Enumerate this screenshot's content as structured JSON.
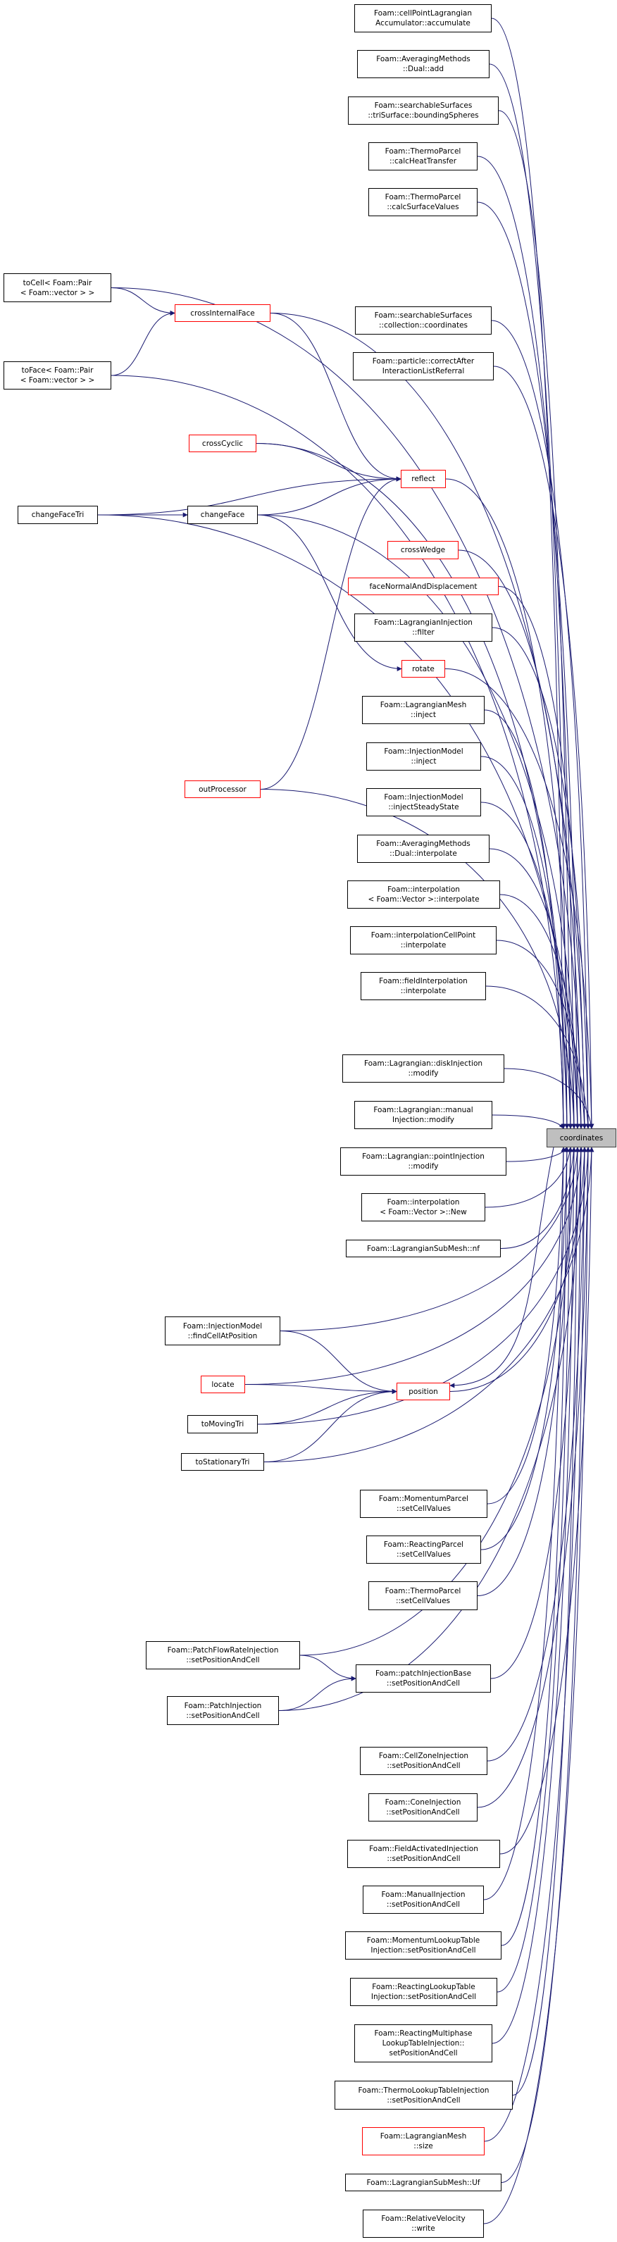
{
  "colors": {
    "edge": "#191970",
    "border": "#000000",
    "unresolved_border": "#ff0000",
    "focus_fill": "#bfbfbf"
  },
  "focus_node": "coordinates",
  "nodes": [
    {
      "id": "coordinates",
      "lines": [
        "coordinates"
      ],
      "red": false
    },
    {
      "id": "accumulate",
      "lines": [
        "Foam::cellPointLagrangian",
        "Accumulator::accumulate"
      ],
      "red": false
    },
    {
      "id": "dual_add",
      "lines": [
        "Foam::AveragingMethods",
        "::Dual::add"
      ],
      "red": false
    },
    {
      "id": "bounding_spheres",
      "lines": [
        "Foam::searchableSurfaces",
        "::triSurface::boundingSpheres"
      ],
      "red": false
    },
    {
      "id": "calc_heat_transfer",
      "lines": [
        "Foam::ThermoParcel",
        "::calcHeatTransfer"
      ],
      "red": false
    },
    {
      "id": "calc_surface_values",
      "lines": [
        "Foam::ThermoParcel",
        "::calcSurfaceValues"
      ],
      "red": false
    },
    {
      "id": "to_cell",
      "lines": [
        "toCell< Foam::Pair",
        "< Foam::vector > >"
      ],
      "red": false
    },
    {
      "id": "cross_internal_face",
      "lines": [
        "crossInternalFace"
      ],
      "red": true
    },
    {
      "id": "collection_coordinates",
      "lines": [
        "Foam::searchableSurfaces",
        "::collection::coordinates"
      ],
      "red": false
    },
    {
      "id": "correct_after",
      "lines": [
        "Foam::particle::correctAfter",
        "InteractionListReferral"
      ],
      "red": false
    },
    {
      "id": "to_face",
      "lines": [
        "toFace< Foam::Pair",
        "< Foam::vector > >"
      ],
      "red": false
    },
    {
      "id": "cross_cyclic",
      "lines": [
        "crossCyclic"
      ],
      "red": true
    },
    {
      "id": "reflect",
      "lines": [
        "reflect"
      ],
      "red": true
    },
    {
      "id": "change_face_tri",
      "lines": [
        "changeFaceTri"
      ],
      "red": false
    },
    {
      "id": "change_face",
      "lines": [
        "changeFace"
      ],
      "red": false
    },
    {
      "id": "cross_wedge",
      "lines": [
        "crossWedge"
      ],
      "red": true
    },
    {
      "id": "face_normal",
      "lines": [
        "faceNormalAndDisplacement"
      ],
      "red": true
    },
    {
      "id": "injection_filter",
      "lines": [
        "Foam::LagrangianInjection",
        "::filter"
      ],
      "red": false
    },
    {
      "id": "rotate",
      "lines": [
        "rotate"
      ],
      "red": true
    },
    {
      "id": "mesh_inject",
      "lines": [
        "Foam::LagrangianMesh",
        "::inject"
      ],
      "red": false
    },
    {
      "id": "model_inject",
      "lines": [
        "Foam::InjectionModel",
        "::inject"
      ],
      "red": false
    },
    {
      "id": "inject_steady",
      "lines": [
        "Foam::InjectionModel",
        "::injectSteadyState"
      ],
      "red": false
    },
    {
      "id": "out_processor",
      "lines": [
        "outProcessor"
      ],
      "red": true
    },
    {
      "id": "dual_interpolate",
      "lines": [
        "Foam::AveragingMethods",
        "::Dual::interpolate"
      ],
      "red": false
    },
    {
      "id": "interp_vector",
      "lines": [
        "Foam::interpolation",
        "< Foam::Vector >::interpolate"
      ],
      "red": false
    },
    {
      "id": "interp_cell_point",
      "lines": [
        "Foam::interpolationCellPoint",
        "::interpolate"
      ],
      "red": false
    },
    {
      "id": "field_interp",
      "lines": [
        "Foam::fieldInterpolation",
        "::interpolate"
      ],
      "red": false
    },
    {
      "id": "disk_modify",
      "lines": [
        "Foam::Lagrangian::diskInjection",
        "::modify"
      ],
      "red": false
    },
    {
      "id": "manual_modify",
      "lines": [
        "Foam::Lagrangian::manual",
        "Injection::modify"
      ],
      "red": false
    },
    {
      "id": "point_modify",
      "lines": [
        "Foam::Lagrangian::pointInjection",
        "::modify"
      ],
      "red": false
    },
    {
      "id": "interp_new",
      "lines": [
        "Foam::interpolation",
        "< Foam::Vector >::New"
      ],
      "red": false
    },
    {
      "id": "submesh_nf",
      "lines": [
        "Foam::LagrangianSubMesh::nf"
      ],
      "red": false
    },
    {
      "id": "find_cell",
      "lines": [
        "Foam::InjectionModel",
        "::findCellAtPosition"
      ],
      "red": false
    },
    {
      "id": "locate",
      "lines": [
        "locate"
      ],
      "red": true
    },
    {
      "id": "position",
      "lines": [
        "position"
      ],
      "red": true
    },
    {
      "id": "to_moving_tri",
      "lines": [
        "toMovingTri"
      ],
      "red": false
    },
    {
      "id": "to_stationary_tri",
      "lines": [
        "toStationaryTri"
      ],
      "red": false
    },
    {
      "id": "momentum_setcell",
      "lines": [
        "Foam::MomentumParcel",
        "::setCellValues"
      ],
      "red": false
    },
    {
      "id": "reacting_setcell",
      "lines": [
        "Foam::ReactingParcel",
        "::setCellValues"
      ],
      "red": false
    },
    {
      "id": "thermo_setcell",
      "lines": [
        "Foam::ThermoParcel",
        "::setCellValues"
      ],
      "red": false
    },
    {
      "id": "patch_flow_rate",
      "lines": [
        "Foam::PatchFlowRateInjection",
        "::setPositionAndCell"
      ],
      "red": false
    },
    {
      "id": "patch_injection_base",
      "lines": [
        "Foam::patchInjectionBase",
        "::setPositionAndCell"
      ],
      "red": false
    },
    {
      "id": "patch_injection",
      "lines": [
        "Foam::PatchInjection",
        "::setPositionAndCell"
      ],
      "red": false
    },
    {
      "id": "cell_zone",
      "lines": [
        "Foam::CellZoneInjection",
        "::setPositionAndCell"
      ],
      "red": false
    },
    {
      "id": "cone",
      "lines": [
        "Foam::ConeInjection",
        "::setPositionAndCell"
      ],
      "red": false
    },
    {
      "id": "field_activated",
      "lines": [
        "Foam::FieldActivatedInjection",
        "::setPositionAndCell"
      ],
      "red": false
    },
    {
      "id": "manual_injection",
      "lines": [
        "Foam::ManualInjection",
        "::setPositionAndCell"
      ],
      "red": false
    },
    {
      "id": "momentum_lookup",
      "lines": [
        "Foam::MomentumLookupTable",
        "Injection::setPositionAndCell"
      ],
      "red": false
    },
    {
      "id": "reacting_lookup",
      "lines": [
        "Foam::ReactingLookupTable",
        "Injection::setPositionAndCell"
      ],
      "red": false
    },
    {
      "id": "reacting_multiphase",
      "lines": [
        "Foam::ReactingMultiphase",
        "LookupTableInjection::",
        "setPositionAndCell"
      ],
      "red": false
    },
    {
      "id": "thermo_lookup",
      "lines": [
        "Foam::ThermoLookupTableInjection",
        "::setPositionAndCell"
      ],
      "red": false
    },
    {
      "id": "mesh_size",
      "lines": [
        "Foam::LagrangianMesh",
        "::size"
      ],
      "red": true
    },
    {
      "id": "submesh_uf",
      "lines": [
        "Foam::LagrangianSubMesh::Uf"
      ],
      "red": false
    },
    {
      "id": "relative_velocity",
      "lines": [
        "Foam::RelativeVelocity",
        "::write"
      ],
      "red": false
    }
  ],
  "edges": [
    [
      "accumulate",
      "coordinates"
    ],
    [
      "dual_add",
      "coordinates"
    ],
    [
      "bounding_spheres",
      "coordinates"
    ],
    [
      "calc_heat_transfer",
      "coordinates"
    ],
    [
      "calc_surface_values",
      "coordinates"
    ],
    [
      "to_cell",
      "coordinates"
    ],
    [
      "to_cell",
      "cross_internal_face"
    ],
    [
      "cross_internal_face",
      "coordinates"
    ],
    [
      "cross_internal_face",
      "reflect"
    ],
    [
      "collection_coordinates",
      "coordinates"
    ],
    [
      "correct_after",
      "coordinates"
    ],
    [
      "to_face",
      "coordinates"
    ],
    [
      "to_face",
      "cross_internal_face"
    ],
    [
      "cross_cyclic",
      "coordinates"
    ],
    [
      "cross_cyclic",
      "reflect"
    ],
    [
      "reflect",
      "coordinates"
    ],
    [
      "change_face_tri",
      "reflect"
    ],
    [
      "change_face_tri",
      "change_face"
    ],
    [
      "change_face_tri",
      "coordinates"
    ],
    [
      "change_face",
      "reflect"
    ],
    [
      "change_face",
      "rotate"
    ],
    [
      "change_face",
      "coordinates"
    ],
    [
      "cross_wedge",
      "coordinates"
    ],
    [
      "face_normal",
      "coordinates"
    ],
    [
      "injection_filter",
      "coordinates"
    ],
    [
      "rotate",
      "coordinates"
    ],
    [
      "mesh_inject",
      "coordinates"
    ],
    [
      "model_inject",
      "coordinates"
    ],
    [
      "inject_steady",
      "coordinates"
    ],
    [
      "out_processor",
      "reflect"
    ],
    [
      "out_processor",
      "coordinates"
    ],
    [
      "dual_interpolate",
      "coordinates"
    ],
    [
      "interp_vector",
      "coordinates"
    ],
    [
      "interp_cell_point",
      "coordinates"
    ],
    [
      "field_interp",
      "coordinates"
    ],
    [
      "disk_modify",
      "coordinates"
    ],
    [
      "manual_modify",
      "coordinates"
    ],
    [
      "point_modify",
      "coordinates"
    ],
    [
      "interp_new",
      "coordinates"
    ],
    [
      "submesh_nf",
      "coordinates"
    ],
    [
      "find_cell",
      "coordinates"
    ],
    [
      "find_cell",
      "position"
    ],
    [
      "locate",
      "coordinates"
    ],
    [
      "locate",
      "position"
    ],
    [
      "position",
      "coordinates"
    ],
    [
      "coordinates",
      "position"
    ],
    [
      "to_moving_tri",
      "coordinates"
    ],
    [
      "to_moving_tri",
      "position"
    ],
    [
      "to_stationary_tri",
      "coordinates"
    ],
    [
      "to_stationary_tri",
      "position"
    ],
    [
      "momentum_setcell",
      "coordinates"
    ],
    [
      "reacting_setcell",
      "coordinates"
    ],
    [
      "thermo_setcell",
      "coordinates"
    ],
    [
      "patch_flow_rate",
      "coordinates"
    ],
    [
      "patch_flow_rate",
      "patch_injection_base"
    ],
    [
      "patch_injection_base",
      "coordinates"
    ],
    [
      "patch_injection",
      "coordinates"
    ],
    [
      "patch_injection",
      "patch_injection_base"
    ],
    [
      "cell_zone",
      "coordinates"
    ],
    [
      "cone",
      "coordinates"
    ],
    [
      "field_activated",
      "coordinates"
    ],
    [
      "manual_injection",
      "coordinates"
    ],
    [
      "momentum_lookup",
      "coordinates"
    ],
    [
      "reacting_lookup",
      "coordinates"
    ],
    [
      "reacting_multiphase",
      "coordinates"
    ],
    [
      "thermo_lookup",
      "coordinates"
    ],
    [
      "mesh_size",
      "coordinates"
    ],
    [
      "submesh_uf",
      "coordinates"
    ],
    [
      "relative_velocity",
      "coordinates"
    ]
  ]
}
